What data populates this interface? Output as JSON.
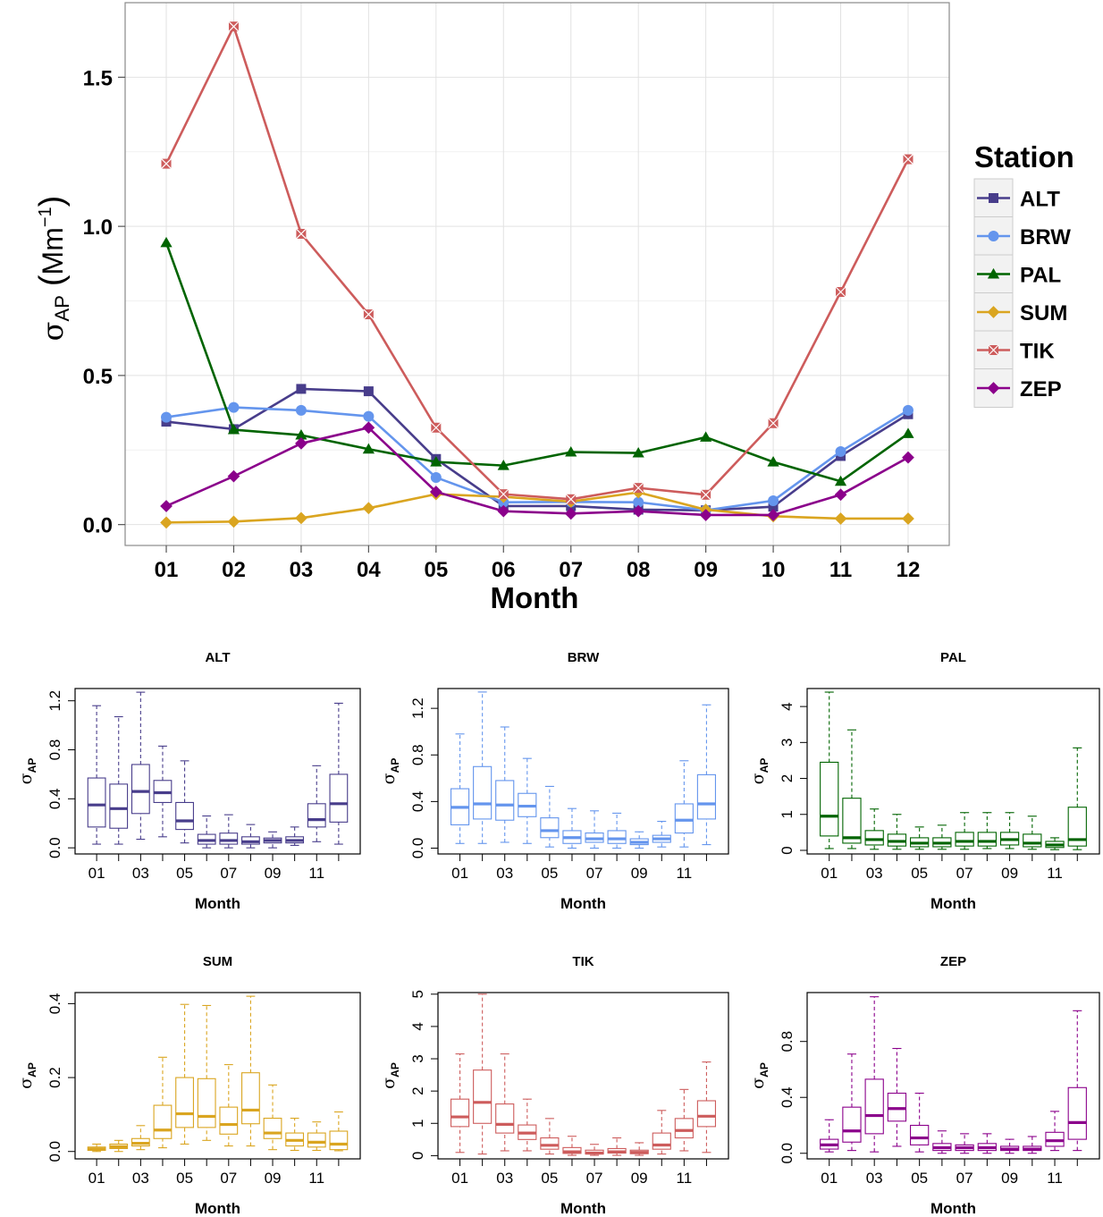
{
  "figure": {
    "main_panel": {
      "xlabel": "Month",
      "ylabel_symbol": "σ",
      "ylabel_sub": "AP",
      "ylabel_unit_open": "(",
      "ylabel_unit_base": "Mm",
      "ylabel_unit_exp": "−1",
      "ylabel_unit_close": ")",
      "legend_title": "Station"
    },
    "box_xlabel": "Month",
    "box_ylabel_symbol": "σ",
    "box_ylabel_sub": "AP"
  },
  "colors": {
    "ALT": "#483D8B",
    "BRW": "#6495ED",
    "PAL": "#006400",
    "SUM": "#DAA520",
    "TIK": "#CD5C5C",
    "ZEP": "#8B008B"
  },
  "chart_data": [
    {
      "type": "line",
      "title": "",
      "xlabel": "Month",
      "ylabel": "σAP (Mm−1)",
      "categories": [
        "01",
        "02",
        "03",
        "04",
        "05",
        "06",
        "07",
        "08",
        "09",
        "10",
        "11",
        "12"
      ],
      "ylim": [
        -0.07,
        1.75
      ],
      "yticks": [
        "0.0",
        "0.5",
        "1.0",
        "1.5"
      ],
      "grid": true,
      "legend": "right",
      "series": [
        {
          "name": "ALT",
          "marker": "square",
          "values": [
            0.345,
            0.32,
            0.455,
            0.447,
            0.22,
            0.062,
            0.062,
            0.05,
            0.048,
            0.06,
            0.23,
            0.37
          ]
        },
        {
          "name": "BRW",
          "marker": "circle",
          "values": [
            0.36,
            0.393,
            0.383,
            0.363,
            0.158,
            0.075,
            0.076,
            0.075,
            0.048,
            0.08,
            0.245,
            0.383
          ]
        },
        {
          "name": "PAL",
          "marker": "triangle",
          "values": [
            0.945,
            0.318,
            0.3,
            0.253,
            0.21,
            0.198,
            0.243,
            0.24,
            0.293,
            0.21,
            0.145,
            0.305
          ]
        },
        {
          "name": "SUM",
          "marker": "diamond",
          "values": [
            0.007,
            0.01,
            0.022,
            0.055,
            0.102,
            0.093,
            0.077,
            0.108,
            0.05,
            0.028,
            0.02,
            0.02
          ]
        },
        {
          "name": "TIK",
          "marker": "cross",
          "values": [
            1.21,
            1.67,
            0.975,
            0.705,
            0.325,
            0.102,
            0.085,
            0.123,
            0.1,
            0.34,
            0.78,
            1.225
          ]
        },
        {
          "name": "ZEP",
          "marker": "diamond",
          "values": [
            0.062,
            0.162,
            0.272,
            0.325,
            0.11,
            0.045,
            0.037,
            0.045,
            0.032,
            0.032,
            0.1,
            0.225
          ]
        }
      ]
    },
    {
      "type": "box",
      "title": "ALT",
      "xlabel": "Month",
      "ylabel": "σAP",
      "ylim": [
        -0.05,
        1.3
      ],
      "yticks": [
        "0.0",
        "0.4",
        "0.8",
        "1.2"
      ],
      "xticks": [
        "01",
        "03",
        "05",
        "07",
        "09",
        "11"
      ],
      "boxes": [
        [
          0.03,
          0.17,
          0.35,
          0.57,
          1.16
        ],
        [
          0.03,
          0.16,
          0.32,
          0.52,
          1.07
        ],
        [
          0.07,
          0.28,
          0.46,
          0.68,
          1.27
        ],
        [
          0.09,
          0.37,
          0.45,
          0.55,
          0.83
        ],
        [
          0.04,
          0.15,
          0.22,
          0.37,
          0.71
        ],
        [
          0.0,
          0.03,
          0.06,
          0.11,
          0.26
        ],
        [
          0.0,
          0.03,
          0.06,
          0.12,
          0.27
        ],
        [
          0.0,
          0.03,
          0.05,
          0.09,
          0.19
        ],
        [
          0.0,
          0.04,
          0.06,
          0.08,
          0.13
        ],
        [
          0.02,
          0.04,
          0.06,
          0.09,
          0.17
        ],
        [
          0.05,
          0.17,
          0.23,
          0.36,
          0.67
        ],
        [
          0.03,
          0.21,
          0.36,
          0.6,
          1.18
        ]
      ]
    },
    {
      "type": "box",
      "title": "BRW",
      "xlabel": "Month",
      "ylabel": "σAP",
      "ylim": [
        -0.05,
        1.37
      ],
      "yticks": [
        "0.0",
        "0.4",
        "0.8",
        "1.2"
      ],
      "xticks": [
        "01",
        "03",
        "05",
        "07",
        "09",
        "11"
      ],
      "boxes": [
        [
          0.04,
          0.2,
          0.35,
          0.51,
          0.98
        ],
        [
          0.04,
          0.25,
          0.38,
          0.7,
          1.34
        ],
        [
          0.05,
          0.24,
          0.37,
          0.58,
          1.04
        ],
        [
          0.04,
          0.27,
          0.36,
          0.47,
          0.77
        ],
        [
          0.01,
          0.09,
          0.15,
          0.26,
          0.53
        ],
        [
          0.0,
          0.04,
          0.09,
          0.15,
          0.34
        ],
        [
          0.0,
          0.05,
          0.08,
          0.13,
          0.32
        ],
        [
          0.0,
          0.04,
          0.08,
          0.15,
          0.3
        ],
        [
          0.0,
          0.03,
          0.05,
          0.08,
          0.14
        ],
        [
          0.01,
          0.05,
          0.08,
          0.11,
          0.23
        ],
        [
          0.01,
          0.13,
          0.24,
          0.38,
          0.75
        ],
        [
          0.03,
          0.25,
          0.38,
          0.63,
          1.23
        ]
      ]
    },
    {
      "type": "box",
      "title": "PAL",
      "xlabel": "Month",
      "ylabel": "σAP",
      "ylim": [
        -0.1,
        4.5
      ],
      "yticks": [
        "0",
        "1",
        "2",
        "3",
        "4"
      ],
      "xticks": [
        "01",
        "03",
        "05",
        "07",
        "09",
        "11"
      ],
      "boxes": [
        [
          0.05,
          0.4,
          0.95,
          2.45,
          4.4
        ],
        [
          0.05,
          0.2,
          0.35,
          1.45,
          3.35
        ],
        [
          0.03,
          0.15,
          0.3,
          0.55,
          1.15
        ],
        [
          0.03,
          0.12,
          0.25,
          0.45,
          1.0
        ],
        [
          0.03,
          0.1,
          0.2,
          0.35,
          0.65
        ],
        [
          0.03,
          0.1,
          0.2,
          0.35,
          0.7
        ],
        [
          0.03,
          0.12,
          0.25,
          0.5,
          1.05
        ],
        [
          0.05,
          0.12,
          0.25,
          0.5,
          1.05
        ],
        [
          0.05,
          0.15,
          0.3,
          0.5,
          1.05
        ],
        [
          0.03,
          0.1,
          0.2,
          0.45,
          0.95
        ],
        [
          0.02,
          0.08,
          0.15,
          0.25,
          0.35
        ],
        [
          0.02,
          0.12,
          0.3,
          1.2,
          2.85
        ]
      ]
    },
    {
      "type": "box",
      "title": "SUM",
      "xlabel": "Month",
      "ylabel": "σAP",
      "ylim": [
        -0.02,
        0.43
      ],
      "yticks": [
        "0.0",
        "0.2",
        "0.4"
      ],
      "xticks": [
        "01",
        "03",
        "05",
        "07",
        "09",
        "11"
      ],
      "boxes": [
        [
          0.0,
          0.003,
          0.007,
          0.012,
          0.02
        ],
        [
          0.0,
          0.008,
          0.013,
          0.02,
          0.03
        ],
        [
          0.005,
          0.015,
          0.022,
          0.035,
          0.07
        ],
        [
          0.01,
          0.035,
          0.058,
          0.125,
          0.255
        ],
        [
          0.02,
          0.065,
          0.102,
          0.2,
          0.398
        ],
        [
          0.03,
          0.065,
          0.095,
          0.197,
          0.395
        ],
        [
          0.015,
          0.047,
          0.073,
          0.12,
          0.235
        ],
        [
          0.015,
          0.075,
          0.112,
          0.213,
          0.42
        ],
        [
          0.005,
          0.035,
          0.05,
          0.09,
          0.18
        ],
        [
          0.003,
          0.015,
          0.03,
          0.05,
          0.09
        ],
        [
          0.003,
          0.012,
          0.025,
          0.05,
          0.08
        ],
        [
          0.002,
          0.005,
          0.02,
          0.055,
          0.107
        ]
      ]
    },
    {
      "type": "box",
      "title": "TIK",
      "xlabel": "Month",
      "ylabel": "σAP",
      "ylim": [
        -0.1,
        5.05
      ],
      "yticks": [
        "0",
        "1",
        "2",
        "3",
        "4",
        "5"
      ],
      "xticks": [
        "01",
        "03",
        "05",
        "07",
        "09",
        "11"
      ],
      "boxes": [
        [
          0.1,
          0.9,
          1.2,
          1.75,
          3.15
        ],
        [
          0.05,
          1.0,
          1.65,
          2.65,
          5.0
        ],
        [
          0.15,
          0.7,
          0.97,
          1.6,
          3.15
        ],
        [
          0.15,
          0.5,
          0.7,
          0.95,
          1.75
        ],
        [
          0.05,
          0.2,
          0.32,
          0.55,
          1.15
        ],
        [
          0.01,
          0.07,
          0.12,
          0.25,
          0.6
        ],
        [
          0.01,
          0.05,
          0.08,
          0.17,
          0.35
        ],
        [
          0.01,
          0.08,
          0.12,
          0.22,
          0.55
        ],
        [
          0.01,
          0.06,
          0.1,
          0.17,
          0.4
        ],
        [
          0.05,
          0.2,
          0.33,
          0.7,
          1.4
        ],
        [
          0.15,
          0.55,
          0.78,
          1.15,
          2.05
        ],
        [
          0.1,
          0.9,
          1.22,
          1.7,
          2.9
        ]
      ]
    },
    {
      "type": "box",
      "title": "ZEP",
      "xlabel": "Month",
      "ylabel": "σAP",
      "ylim": [
        -0.04,
        1.15
      ],
      "yticks": [
        "0.0",
        "0.4",
        "0.8"
      ],
      "xticks": [
        "01",
        "03",
        "05",
        "07",
        "09",
        "11"
      ],
      "boxes": [
        [
          0.01,
          0.03,
          0.06,
          0.1,
          0.24
        ],
        [
          0.02,
          0.08,
          0.16,
          0.33,
          0.71
        ],
        [
          0.01,
          0.14,
          0.27,
          0.53,
          1.12
        ],
        [
          0.05,
          0.23,
          0.32,
          0.43,
          0.75
        ],
        [
          0.01,
          0.06,
          0.11,
          0.2,
          0.43
        ],
        [
          0.0,
          0.02,
          0.04,
          0.07,
          0.16
        ],
        [
          0.0,
          0.02,
          0.04,
          0.06,
          0.14
        ],
        [
          0.0,
          0.02,
          0.04,
          0.07,
          0.14
        ],
        [
          0.0,
          0.02,
          0.03,
          0.05,
          0.1
        ],
        [
          0.0,
          0.02,
          0.03,
          0.05,
          0.12
        ],
        [
          0.02,
          0.05,
          0.09,
          0.15,
          0.3
        ],
        [
          0.02,
          0.1,
          0.22,
          0.47,
          1.02
        ]
      ]
    }
  ]
}
